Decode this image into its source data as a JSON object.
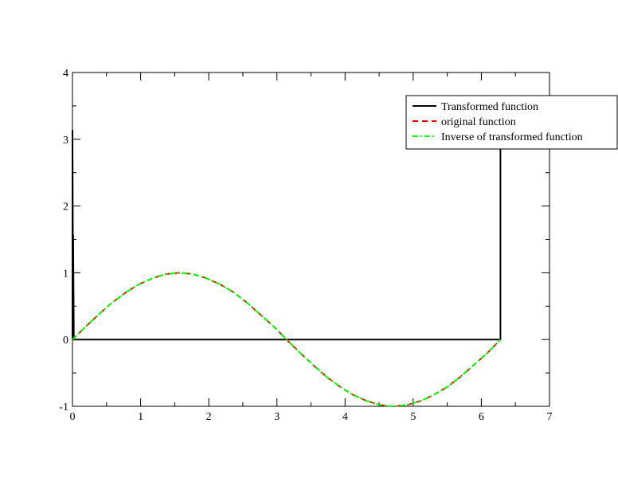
{
  "chart_data": {
    "type": "line",
    "xlim": [
      0,
      7
    ],
    "ylim": [
      -1,
      4
    ],
    "xticks": [
      0,
      1,
      2,
      3,
      4,
      5,
      6,
      7
    ],
    "yticks": [
      -1,
      0,
      1,
      2,
      3,
      4
    ],
    "xminorticks": [
      0.5,
      1.5,
      2.5,
      3.5,
      4.5,
      5.5,
      6.5
    ],
    "yminorticks": [
      -0.5,
      0.5,
      1.5,
      2.5,
      3.5
    ],
    "legend": "top-right",
    "series": [
      {
        "name": "Transformed function",
        "color": "#000000",
        "dash": "solid",
        "x": [
          0,
          0,
          0.01,
          0.01,
          0.02,
          6.26,
          6.28,
          6.28
        ],
        "values": [
          0,
          3.14,
          0,
          1.57,
          0,
          0,
          0,
          3.14
        ]
      },
      {
        "name": "original function",
        "color": "#ff0000",
        "dash": "dashed",
        "x": [
          0,
          0.2,
          0.39,
          0.59,
          0.79,
          0.98,
          1.18,
          1.37,
          1.57,
          1.77,
          1.96,
          2.16,
          2.36,
          2.55,
          2.75,
          2.95,
          3.14,
          3.34,
          3.53,
          3.73,
          3.93,
          4.12,
          4.32,
          4.52,
          4.71,
          4.91,
          5.11,
          5.3,
          5.5,
          5.69,
          5.89,
          6.09,
          6.28
        ],
        "values": [
          0,
          0.2,
          0.38,
          0.56,
          0.71,
          0.83,
          0.92,
          0.98,
          1,
          0.98,
          0.92,
          0.83,
          0.71,
          0.56,
          0.38,
          0.2,
          0,
          -0.2,
          -0.38,
          -0.56,
          -0.71,
          -0.83,
          -0.92,
          -0.98,
          -1,
          -0.98,
          -0.92,
          -0.83,
          -0.71,
          -0.56,
          -0.38,
          -0.2,
          0
        ]
      },
      {
        "name": "Inverse of transformed function",
        "color": "#00ff00",
        "dash": "dashdot",
        "x": [
          0,
          0.2,
          0.39,
          0.59,
          0.79,
          0.98,
          1.18,
          1.37,
          1.57,
          1.77,
          1.96,
          2.16,
          2.36,
          2.55,
          2.75,
          2.95,
          3.14,
          3.34,
          3.53,
          3.73,
          3.93,
          4.12,
          4.32,
          4.52,
          4.71,
          4.91,
          5.11,
          5.3,
          5.5,
          5.69,
          5.89,
          6.09,
          6.28
        ],
        "values": [
          0,
          0.2,
          0.38,
          0.56,
          0.71,
          0.83,
          0.92,
          0.98,
          1,
          0.98,
          0.92,
          0.83,
          0.71,
          0.56,
          0.38,
          0.2,
          0,
          -0.2,
          -0.38,
          -0.56,
          -0.71,
          -0.83,
          -0.92,
          -0.98,
          -1,
          -0.98,
          -0.92,
          -0.83,
          -0.71,
          -0.56,
          -0.38,
          -0.2,
          0
        ]
      }
    ]
  }
}
